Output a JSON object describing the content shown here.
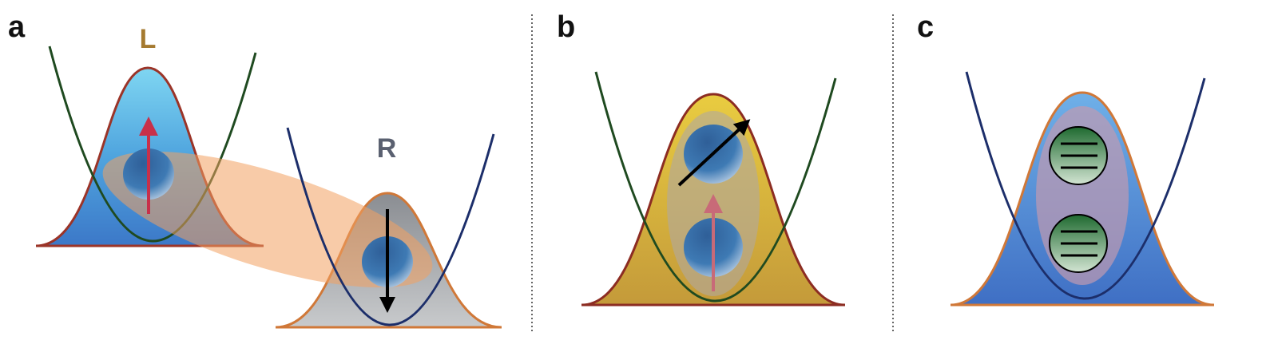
{
  "panel_a": {
    "label": "a",
    "left_well": "L",
    "right_well": "R"
  },
  "panel_b": {
    "label": "b"
  },
  "panel_c": {
    "label": "c"
  }
}
